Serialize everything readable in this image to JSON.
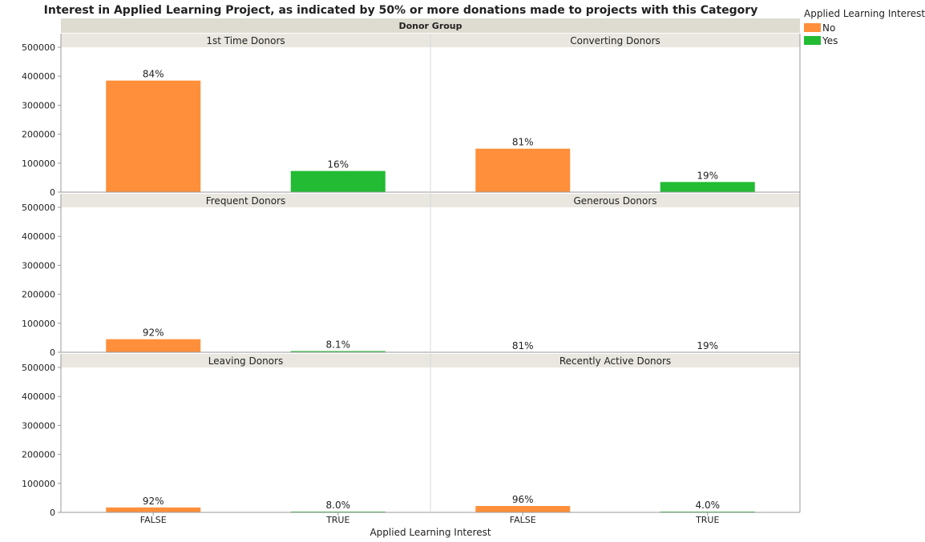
{
  "title": "Interest in Applied Learning Project, as indicated by 50% or more donations made to projects with this Category",
  "facet_header": "Donor Group",
  "xlabel": "Applied Learning Interest",
  "legend": {
    "title": "Applied Learning Interest",
    "items": [
      {
        "label": "No",
        "color": "#ff8f3a"
      },
      {
        "label": "Yes",
        "color": "#22bb33"
      }
    ]
  },
  "y_ticks": [
    "0",
    "100000",
    "200000",
    "300000",
    "400000",
    "500000"
  ],
  "x_ticks": [
    "FALSE",
    "TRUE"
  ],
  "chart_data": {
    "type": "bar",
    "title": "Interest in Applied Learning Project, as indicated by 50% or more donations made to projects with this Category",
    "xlabel": "Applied Learning Interest",
    "ylabel": "",
    "ylim": [
      0,
      500000
    ],
    "categories": [
      "FALSE",
      "TRUE"
    ],
    "facet_by": "Donor Group",
    "legend_position": "top-right",
    "grid": false,
    "panels": [
      {
        "name": "1st Time Donors",
        "values": [
          385000,
          73000
        ],
        "labels": [
          "84%",
          "16%"
        ]
      },
      {
        "name": "Converting Donors",
        "values": [
          150000,
          35000
        ],
        "labels": [
          "81%",
          "19%"
        ]
      },
      {
        "name": "Frequent Donors",
        "values": [
          45000,
          4000
        ],
        "labels": [
          "92%",
          "8.1%"
        ]
      },
      {
        "name": "Generous Donors",
        "values": [
          0,
          0
        ],
        "labels": [
          "81%",
          "19%"
        ]
      },
      {
        "name": "Leaving Donors",
        "values": [
          17000,
          1500
        ],
        "labels": [
          "92%",
          "8.0%"
        ]
      },
      {
        "name": "Recently Active Donors",
        "values": [
          22000,
          900
        ],
        "labels": [
          "96%",
          "4.0%"
        ]
      }
    ]
  }
}
